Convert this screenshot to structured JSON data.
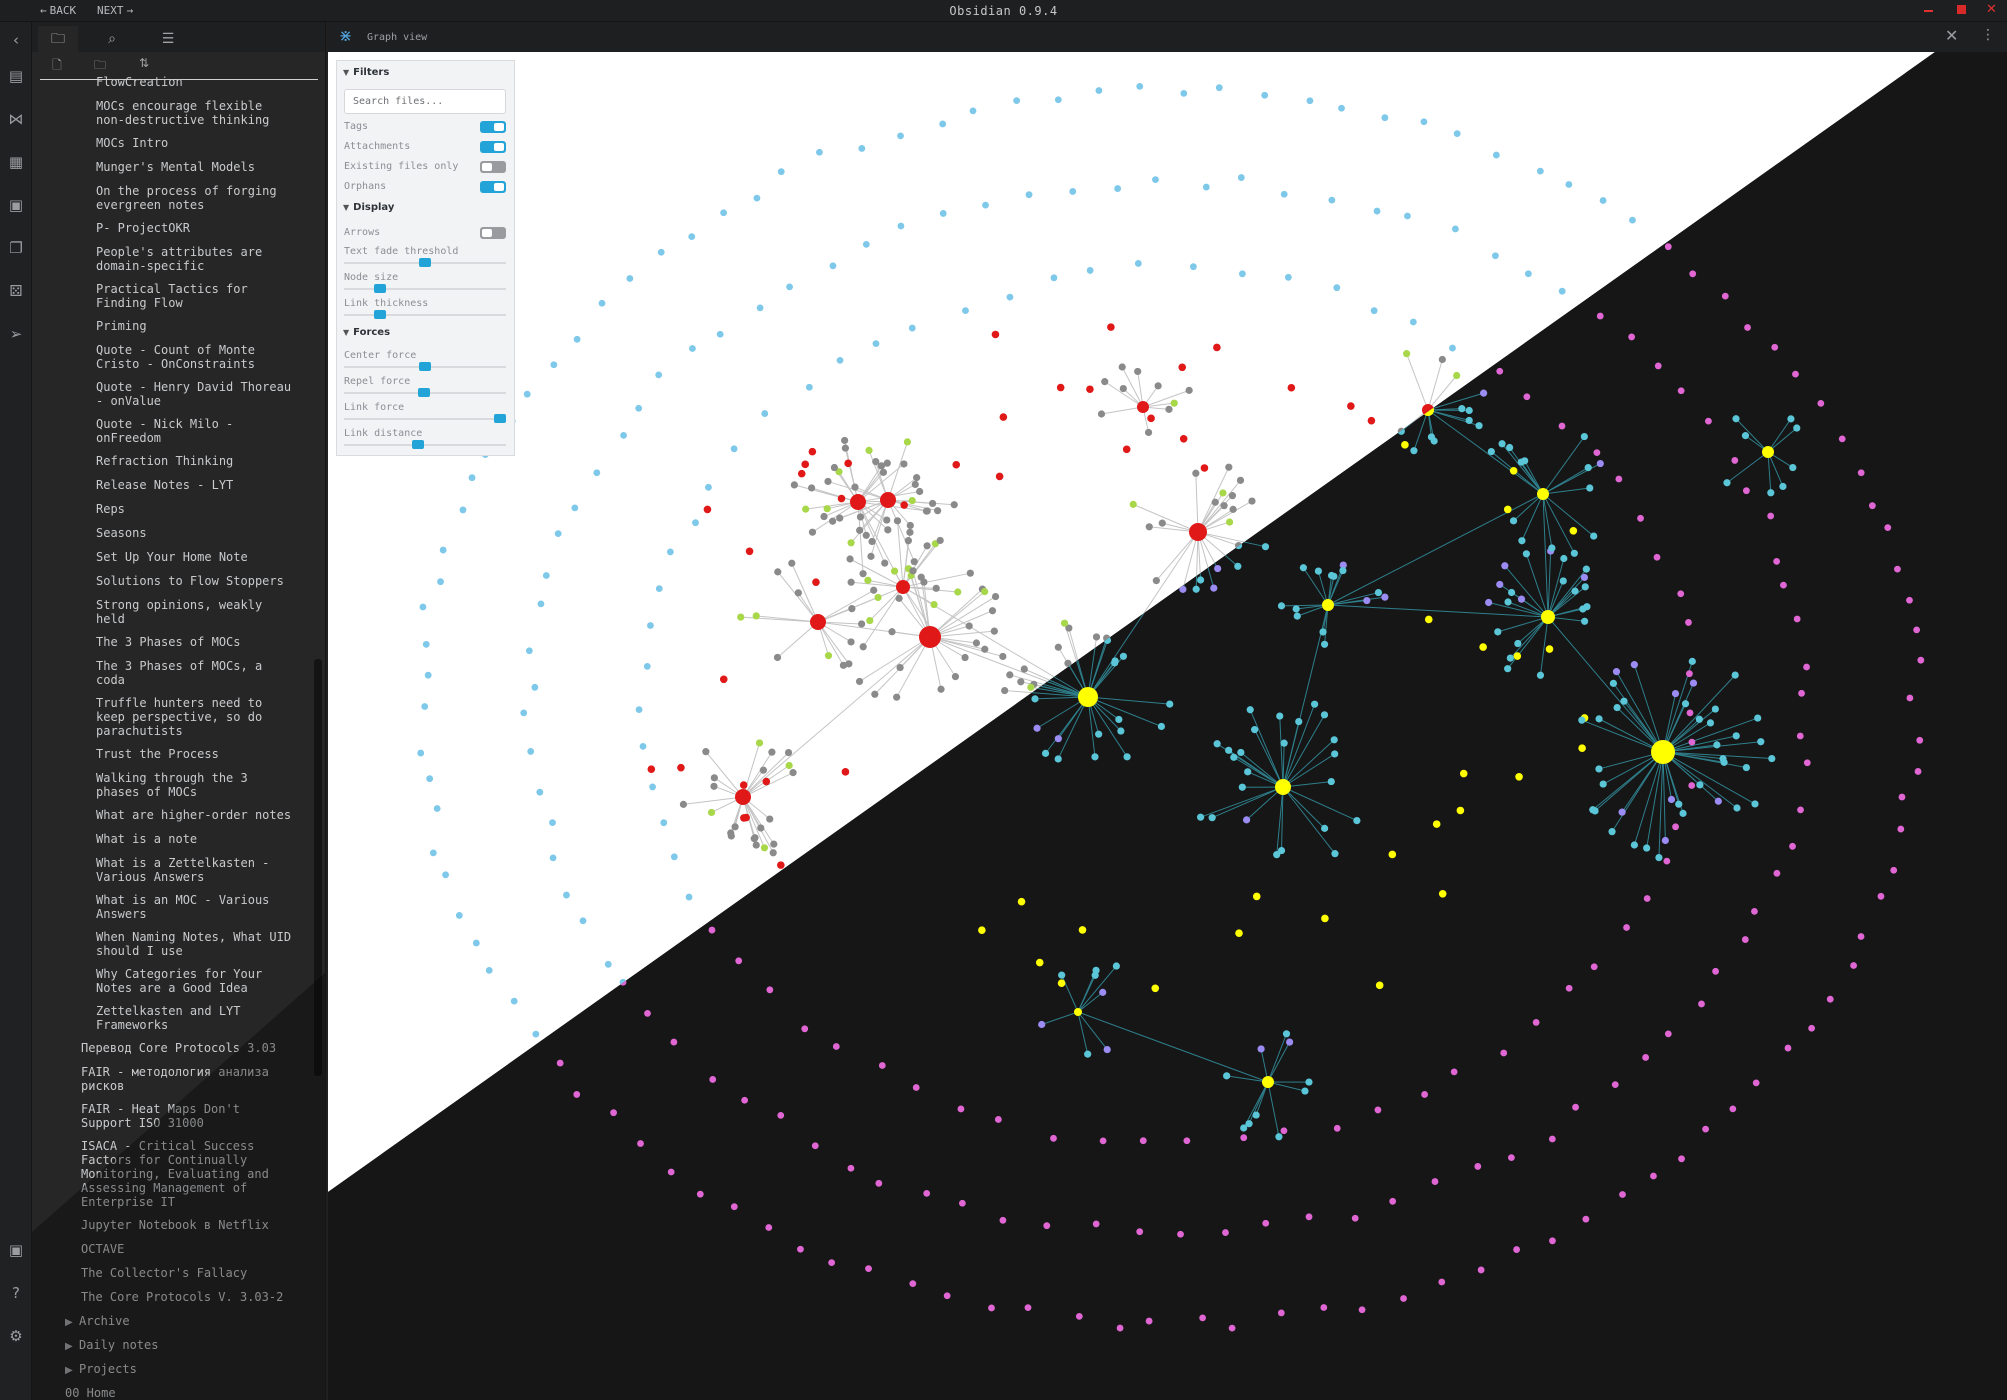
{
  "titlebar": {
    "back_label": "BACK",
    "next_label": "NEXT",
    "title": "Obsidian 0.9.4"
  },
  "ribbon": {
    "icons": [
      "chevron-left-icon",
      "file-icon",
      "graph-icon",
      "blocks-icon",
      "calendar-icon",
      "copy-icon",
      "dice-icon",
      "send-icon",
      "vault-icon",
      "help-icon",
      "settings-icon"
    ]
  },
  "sidebar": {
    "tabs": [
      "file-explorer",
      "search",
      "starred"
    ],
    "actions": [
      "new-note",
      "new-folder",
      "sort"
    ],
    "items": [
      {
        "label": "FlowCreation",
        "level": 2
      },
      {
        "label": "MOCs encourage flexible\nnon-destructive thinking",
        "level": 2
      },
      {
        "label": "MOCs Intro",
        "level": 2
      },
      {
        "label": "Munger's Mental Models",
        "level": 2
      },
      {
        "label": "On the process of forging\nevergreen notes",
        "level": 2
      },
      {
        "label": "P- ProjectOKR",
        "level": 2
      },
      {
        "label": "People's attributes are\ndomain-specific",
        "level": 2
      },
      {
        "label": "Practical Tactics for\nFinding Flow",
        "level": 2
      },
      {
        "label": "Priming",
        "level": 2
      },
      {
        "label": "Quote - Count of Monte\nCristo - OnConstraints",
        "level": 2
      },
      {
        "label": "Quote - Henry David Thoreau\n- onValue",
        "level": 2
      },
      {
        "label": "Quote - Nick Milo -\nonFreedom",
        "level": 2
      },
      {
        "label": "Refraction Thinking",
        "level": 2
      },
      {
        "label": "Release Notes - LYT",
        "level": 2
      },
      {
        "label": "Reps",
        "level": 2
      },
      {
        "label": "Seasons",
        "level": 2
      },
      {
        "label": "Set Up Your Home Note",
        "level": 2
      },
      {
        "label": "Solutions to Flow Stoppers",
        "level": 2
      },
      {
        "label": "Strong opinions, weakly\nheld",
        "level": 2
      },
      {
        "label": "The 3 Phases of MOCs",
        "level": 2
      },
      {
        "label": "The 3 Phases of MOCs, a\ncoda",
        "level": 2
      },
      {
        "label": "Truffle hunters need to\nkeep perspective, so do\nparachutists",
        "level": 2
      },
      {
        "label": "Trust the Process",
        "level": 2
      },
      {
        "label": "Walking through the 3\nphases of MOCs",
        "level": 2
      },
      {
        "label": "What are higher-order notes",
        "level": 2
      },
      {
        "label": "What is a note",
        "level": 2
      },
      {
        "label": "What is a Zettelkasten -\nVarious Answers",
        "level": 2
      },
      {
        "label": "What is an MOC - Various\nAnswers",
        "level": 2
      },
      {
        "label": "When Naming Notes, What UID\nshould I use",
        "level": 2
      },
      {
        "label": "Why Categories for Your\nNotes are a Good Idea",
        "level": 2
      },
      {
        "label": "Zettelkasten and LYT\nFrameworks",
        "level": 2
      },
      {
        "label": "Перевод Core Protocols 3.03",
        "level": 1
      },
      {
        "label": "FAIR - методология анализа\nрисков",
        "level": 1
      },
      {
        "label": "FAIR - Heat Maps Don't\nSupport ISO 31000",
        "level": 1
      },
      {
        "label": "ISACA - Critical Success\nFactors for Continually\nMonitoring, Evaluating and\nAssessing Management of\nEnterprise IT",
        "level": 1
      },
      {
        "label": "Jupyter Notebook в Netflix",
        "level": 1
      },
      {
        "label": "OCTAVE",
        "level": 1
      },
      {
        "label": "The Collector's Fallacy",
        "level": 1
      },
      {
        "label": "The Core Protocols V. 3.03-2",
        "level": 1
      },
      {
        "label": "Archive",
        "level": 0,
        "folder": true
      },
      {
        "label": "Daily notes",
        "level": 0,
        "folder": true
      },
      {
        "label": "Projects",
        "level": 0,
        "folder": true
      },
      {
        "label": "00 Home",
        "level": 0
      }
    ]
  },
  "graph_view": {
    "title": "Graph view",
    "filters": {
      "heading": "Filters",
      "search_placeholder": "Search files...",
      "tags_label": "Tags",
      "tags_on": true,
      "attachments_label": "Attachments",
      "attachments_on": true,
      "existing_label": "Existing files only",
      "existing_on": false,
      "orphans_label": "Orphans",
      "orphans_on": true
    },
    "display": {
      "heading": "Display",
      "arrows_label": "Arrows",
      "arrows_on": false,
      "text_fade_label": "Text fade threshold",
      "text_fade_value": 0.5,
      "node_size_label": "Node size",
      "node_size_value": 0.2,
      "link_thickness_label": "Link thickness",
      "link_thickness_value": 0.2
    },
    "forces": {
      "heading": "Forces",
      "center_label": "Center force",
      "center_value": 0.5,
      "repel_label": "Repel force",
      "repel_value": 0.49,
      "link_force_label": "Link force",
      "link_force_value": 1.0,
      "link_distance_label": "Link distance",
      "link_distance_value": 0.45
    },
    "colors": {
      "light_bg": "#ffffff",
      "dark_bg": "#161616",
      "orphan_light": "#7ec8ea",
      "orphan_dark": "#e066d4",
      "hub_light": "#e01818",
      "hub_dark": "#ffff00",
      "leaf_light": "#8a8a8a",
      "leaf_dark": "#5ac6d8",
      "tag_light": "#a8d84a",
      "tag_dark": "#9a8cf2",
      "link_light": "#c4c4c4",
      "link_dark": "#2e7f8c"
    }
  }
}
